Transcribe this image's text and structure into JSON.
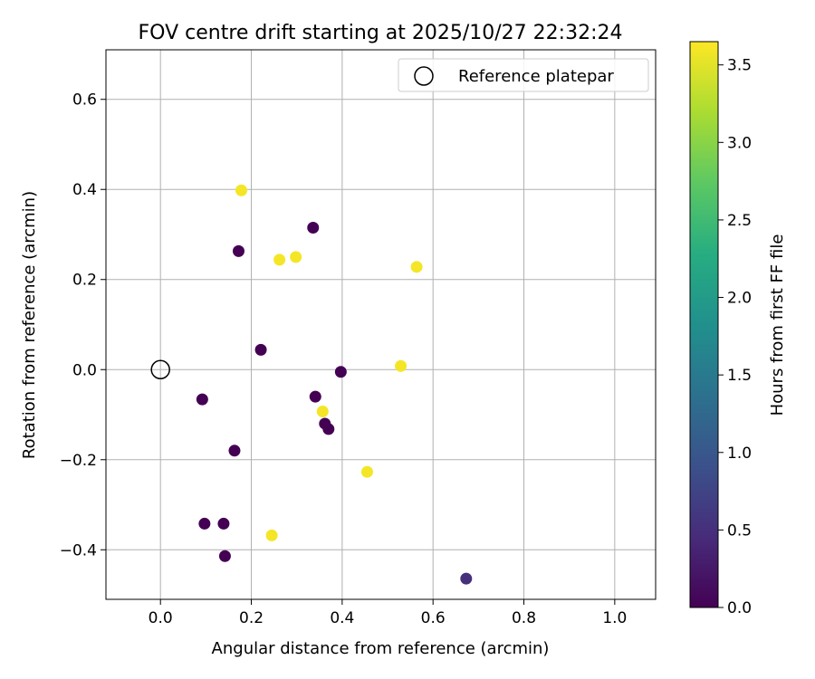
{
  "chart_data": {
    "type": "scatter",
    "title": "FOV centre drift starting at 2025/10/27 22:32:24",
    "xlabel": "Angular distance from reference (arcmin)",
    "ylabel": "Rotation from reference (arcmin)",
    "xlim": [
      -0.12,
      1.09
    ],
    "ylim": [
      -0.51,
      0.71
    ],
    "xticks": [
      "0.0",
      "0.2",
      "0.4",
      "0.6",
      "0.8",
      "1.0"
    ],
    "xtick_values": [
      0.0,
      0.2,
      0.4,
      0.6,
      0.8,
      1.0
    ],
    "yticks": [
      "0.6",
      "0.4",
      "0.2",
      "0.0",
      "−0.2",
      "−0.4"
    ],
    "ytick_values": [
      0.6,
      0.4,
      0.2,
      0.0,
      -0.2,
      -0.4
    ],
    "grid": true,
    "colormap": "viridis",
    "colorbar": {
      "label": "Hours from first FF file",
      "range": [
        0.0,
        3.65
      ],
      "ticks": [
        "0.0",
        "0.5",
        "1.0",
        "1.5",
        "2.0",
        "2.5",
        "3.0",
        "3.5"
      ],
      "tick_values": [
        0.0,
        0.5,
        1.0,
        1.5,
        2.0,
        2.5,
        3.0,
        3.5
      ]
    },
    "legend": {
      "label": "Reference platepar",
      "location": "upper-right"
    },
    "reference_point": {
      "x": 0.0,
      "y": 0.0
    },
    "points": [
      {
        "x": 0.178,
        "y": 0.398,
        "hours": 3.6
      },
      {
        "x": 0.262,
        "y": 0.244,
        "hours": 3.6
      },
      {
        "x": 0.298,
        "y": 0.25,
        "hours": 3.6
      },
      {
        "x": 0.564,
        "y": 0.228,
        "hours": 3.6
      },
      {
        "x": 0.529,
        "y": 0.008,
        "hours": 3.6
      },
      {
        "x": 0.357,
        "y": -0.093,
        "hours": 3.6
      },
      {
        "x": 0.455,
        "y": -0.227,
        "hours": 3.6
      },
      {
        "x": 0.245,
        "y": -0.368,
        "hours": 3.6
      },
      {
        "x": 0.336,
        "y": 0.315,
        "hours": 0.0
      },
      {
        "x": 0.172,
        "y": 0.263,
        "hours": 0.0
      },
      {
        "x": 0.221,
        "y": 0.044,
        "hours": 0.0
      },
      {
        "x": 0.397,
        "y": -0.005,
        "hours": 0.0
      },
      {
        "x": 0.341,
        "y": -0.06,
        "hours": 0.0
      },
      {
        "x": 0.092,
        "y": -0.066,
        "hours": 0.0
      },
      {
        "x": 0.362,
        "y": -0.12,
        "hours": 0.0
      },
      {
        "x": 0.37,
        "y": -0.132,
        "hours": 0.0
      },
      {
        "x": 0.163,
        "y": -0.18,
        "hours": 0.0
      },
      {
        "x": 0.097,
        "y": -0.342,
        "hours": 0.0
      },
      {
        "x": 0.139,
        "y": -0.342,
        "hours": 0.0
      },
      {
        "x": 0.142,
        "y": -0.414,
        "hours": 0.0
      },
      {
        "x": 0.673,
        "y": -0.464,
        "hours": 0.5
      }
    ]
  }
}
